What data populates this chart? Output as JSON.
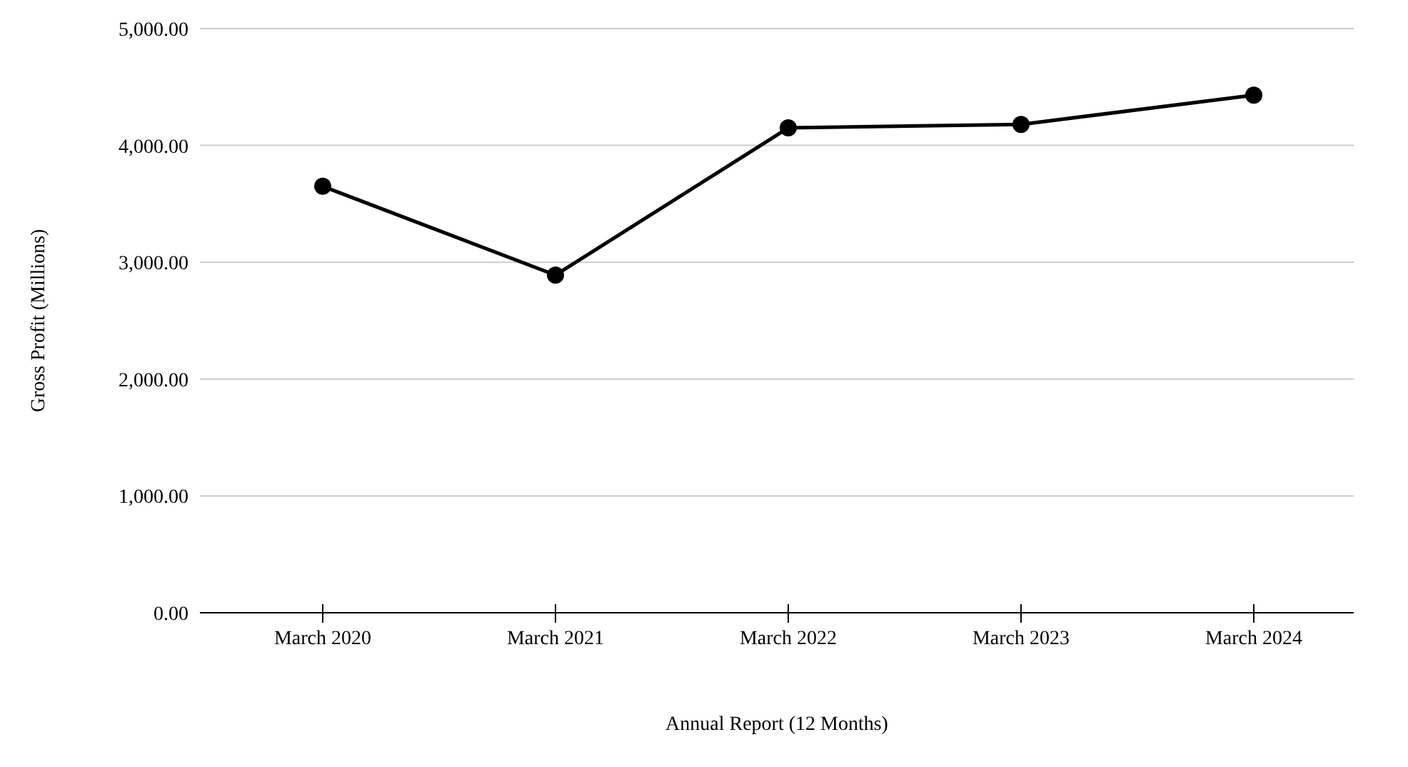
{
  "chart_data": {
    "type": "line",
    "xlabel": "Annual Report (12 Months)",
    "ylabel": "Gross Profit (Millions)",
    "categories": [
      "March 2020",
      "March 2021",
      "March 2022",
      "March 2023",
      "March 2024"
    ],
    "series": [
      {
        "color": "#000000",
        "values": [
          3650,
          2890,
          4150,
          4180,
          4430
        ]
      }
    ],
    "ylim": [
      0,
      5000
    ],
    "yticks": [
      {
        "value": 0,
        "label": "0.00"
      },
      {
        "value": 1000,
        "label": "1,000.00"
      },
      {
        "value": 2000,
        "label": "2,000.00"
      },
      {
        "value": 3000,
        "label": "3,000.00"
      },
      {
        "value": 4000,
        "label": "4,000.00"
      },
      {
        "value": 5000,
        "label": "5,000.00"
      }
    ],
    "grid": "y",
    "marker": "circle",
    "line_style": "solid",
    "legend": false
  }
}
